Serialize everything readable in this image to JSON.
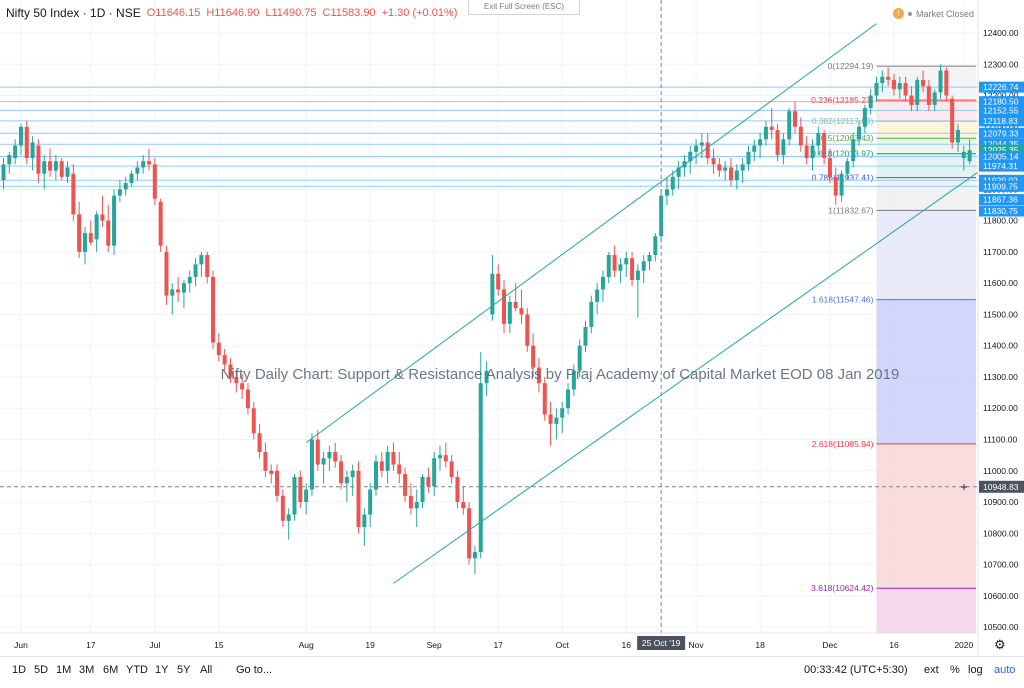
{
  "header": {
    "symbol": "Nifty 50 Index · 1D · NSE",
    "o": "O11646.15",
    "h": "H11646.90",
    "l": "L11490.75",
    "c": "C11583.90",
    "chg": "+1.30 (+0.01%)",
    "exit_fullscreen": "Exit Full Screen (ESC)",
    "market_status": "Market Closed",
    "market_icon": "!"
  },
  "watermark": "Nifty Daily Chart: Support & Resistance Analysis by Praj Academy of Capital Market EOD 08 Jan 2019",
  "bottom_bar": {
    "timeframes": [
      "1D",
      "5D",
      "1M",
      "3M",
      "6M",
      "YTD",
      "1Y",
      "5Y",
      "All"
    ],
    "goto": "Go to...",
    "clock": "00:33:42 (UTC+5:30)",
    "options": [
      "ext",
      "%",
      "log",
      "auto"
    ]
  },
  "chart_data": {
    "type": "candlestick",
    "ylim": [
      10460,
      12480
    ],
    "y_ticks": [
      12400,
      12300,
      12200,
      12100,
      12000,
      11900,
      11800,
      11700,
      11600,
      11500,
      11400,
      11300,
      11200,
      11100,
      11000,
      10900,
      10800,
      10700,
      10600,
      10500
    ],
    "y_tick_labels": [
      "12400.00",
      "12300.00",
      "12200.00",
      "12100.00",
      "12000.00",
      "11900.00",
      "11800.00",
      "11700.00",
      "11600.00",
      "11500.00",
      "11400.00",
      "11300.00",
      "11200.00",
      "11100.00",
      "11000.00",
      "10900.00",
      "10800.00",
      "10700.00",
      "10600.00",
      "10500.00"
    ],
    "x_ticks": [
      {
        "label": "Jun",
        "bar": 3
      },
      {
        "label": "17",
        "bar": 15
      },
      {
        "label": "Jul",
        "bar": 26
      },
      {
        "label": "15",
        "bar": 37
      },
      {
        "label": "Aug",
        "bar": 52
      },
      {
        "label": "19",
        "bar": 63
      },
      {
        "label": "Sep",
        "bar": 74
      },
      {
        "label": "17",
        "bar": 85
      },
      {
        "label": "Oct",
        "bar": 96
      },
      {
        "label": "16",
        "bar": 107
      },
      {
        "label": "Nov",
        "bar": 119
      },
      {
        "label": "18",
        "bar": 130
      },
      {
        "label": "Dec",
        "bar": 142
      },
      {
        "label": "16",
        "bar": 153
      },
      {
        "label": "2020",
        "bar": 165
      }
    ],
    "crosshair": {
      "bar": 113,
      "x_label": "25 Oct '19",
      "y_value": 10948.83,
      "y_label": "10948.83"
    },
    "price_tags": [
      {
        "value": 12226.74,
        "label": "12226.74",
        "color": "#2196f3"
      },
      {
        "value": 12180.5,
        "label": "12180.50",
        "color": "#2196f3"
      },
      {
        "value": 12152.55,
        "label": "12152.55",
        "color": "#2196f3"
      },
      {
        "value": 12118.83,
        "label": "12118.83",
        "color": "#2196f3"
      },
      {
        "value": 12079.33,
        "label": "12079.33",
        "color": "#2196f3"
      },
      {
        "value": 12044.35,
        "label": "12044.35",
        "color": "#2196f3"
      },
      {
        "value": 12025.35,
        "label": "12025.35",
        "color": "#26a69a"
      },
      {
        "value": 12005.14,
        "label": "12005.14",
        "color": "#2196f3"
      },
      {
        "value": 11974.31,
        "label": "11974.31",
        "color": "#2196f3"
      },
      {
        "value": 11929.02,
        "label": "11929.02",
        "color": "#2196f3"
      },
      {
        "value": 11909.75,
        "label": "11909.75",
        "color": "#2196f3"
      },
      {
        "value": 11867.36,
        "label": "11867.36",
        "color": "#2196f3"
      },
      {
        "value": 11830.75,
        "label": "11830.75",
        "color": "#2196f3"
      }
    ],
    "fib": {
      "start_bar": 150,
      "end_bar": 177,
      "levels": [
        {
          "ratio": "0",
          "value": 12294.19,
          "label": "0(12294.19)",
          "color": "#787b86",
          "fill": "#f2f3f5"
        },
        {
          "ratio": "0.236",
          "value": 12185.27,
          "label": "0.236(12185.27)",
          "color": "#f23645",
          "fill": "#fde7e7"
        },
        {
          "ratio": "0.382",
          "value": 12117.89,
          "label": "0.382(12117.89)",
          "color": "#81c784",
          "fill": "#fdf4d8"
        },
        {
          "ratio": "0.5",
          "value": 12063.43,
          "label": "0.5(12063.43)",
          "color": "#4caf50",
          "fill": "#e8f5e9"
        },
        {
          "ratio": "0.618",
          "value": 12013.97,
          "label": "0.618(12013.97)",
          "color": "#089981",
          "fill": "#e0f2f1"
        },
        {
          "ratio": "0.786",
          "value": 11937.41,
          "label": "0.786(11937.41)",
          "color": "#2962ff",
          "fill": "#f0f0f0"
        },
        {
          "ratio": "1",
          "value": 11832.67,
          "label": "1(11832.67)",
          "color": "#787b86",
          "fill": "#e6e8f7"
        },
        {
          "ratio": "1.618",
          "value": 11547.46,
          "label": "1.618(11547.46)",
          "color": "#5b6ee1",
          "fill": "#ccd3fa"
        },
        {
          "ratio": "2.618",
          "value": 11085.94,
          "label": "2.618(11085.94)",
          "color": "#f23645",
          "fill": "#f8d9d9"
        },
        {
          "ratio": "3.618",
          "value": 10624.42,
          "label": "3.618(10624.42)",
          "color": "#9c27b0",
          "fill": "#ead7f7"
        }
      ],
      "bottom_fill": "#f5d7ec"
    },
    "horizontal_lines": [
      12226.74,
      12180.5,
      12152.55,
      12118.83,
      12079.33,
      12044.35,
      12005.14,
      11974.31,
      11929.02,
      11909.75
    ],
    "channel": {
      "upper": [
        {
          "bar": 52,
          "value": 11090
        },
        {
          "bar": 150,
          "value": 12430
        }
      ],
      "lower": [
        {
          "bar": 67,
          "value": 10640
        },
        {
          "bar": 177,
          "value": 12080
        }
      ],
      "color": "#26a69a"
    },
    "candles": [
      [
        11930,
        12000,
        11900,
        11980
      ],
      [
        11980,
        12020,
        11950,
        12010
      ],
      [
        12000,
        12060,
        11980,
        12040
      ],
      [
        12040,
        12110,
        12010,
        12100
      ],
      [
        12100,
        12120,
        11980,
        12000
      ],
      [
        12000,
        12070,
        11960,
        12050
      ],
      [
        12040,
        12060,
        11920,
        11950
      ],
      [
        11950,
        12010,
        11900,
        11990
      ],
      [
        11990,
        12030,
        11940,
        11960
      ],
      [
        11960,
        12010,
        11930,
        11990
      ],
      [
        11990,
        12000,
        11930,
        11940
      ],
      [
        11940,
        11990,
        11920,
        11970
      ],
      [
        11950,
        11980,
        11800,
        11820
      ],
      [
        11820,
        11860,
        11680,
        11700
      ],
      [
        11700,
        11780,
        11660,
        11760
      ],
      [
        11760,
        11800,
        11720,
        11730
      ],
      [
        11740,
        11830,
        11700,
        11820
      ],
      [
        11820,
        11880,
        11780,
        11800
      ],
      [
        11800,
        11850,
        11700,
        11720
      ],
      [
        11720,
        11900,
        11690,
        11880
      ],
      [
        11880,
        11930,
        11860,
        11900
      ],
      [
        11900,
        11940,
        11880,
        11920
      ],
      [
        11920,
        11960,
        11910,
        11950
      ],
      [
        11950,
        11990,
        11930,
        11970
      ],
      [
        11970,
        12010,
        11950,
        11990
      ],
      [
        11990,
        12030,
        11960,
        11980
      ],
      [
        11980,
        12000,
        11850,
        11870
      ],
      [
        11860,
        11870,
        11700,
        11720
      ],
      [
        11700,
        11720,
        11530,
        11560
      ],
      [
        11560,
        11600,
        11500,
        11580
      ],
      [
        11580,
        11620,
        11540,
        11570
      ],
      [
        11570,
        11610,
        11520,
        11600
      ],
      [
        11600,
        11640,
        11570,
        11620
      ],
      [
        11620,
        11680,
        11590,
        11660
      ],
      [
        11660,
        11700,
        11620,
        11690
      ],
      [
        11690,
        11700,
        11600,
        11620
      ],
      [
        11620,
        11640,
        11390,
        11410
      ],
      [
        11410,
        11440,
        11350,
        11370
      ],
      [
        11370,
        11390,
        11320,
        11340
      ],
      [
        11340,
        11360,
        11280,
        11300
      ],
      [
        11300,
        11320,
        11250,
        11280
      ],
      [
        11280,
        11310,
        11230,
        11260
      ],
      [
        11260,
        11280,
        11180,
        11200
      ],
      [
        11200,
        11220,
        11100,
        11120
      ],
      [
        11120,
        11150,
        11040,
        11060
      ],
      [
        11060,
        11090,
        10980,
        11000
      ],
      [
        11000,
        11020,
        10960,
        10990
      ],
      [
        11000,
        11020,
        10900,
        10920
      ],
      [
        10920,
        10940,
        10820,
        10840
      ],
      [
        10840,
        10880,
        10780,
        10860
      ],
      [
        10860,
        10990,
        10840,
        10980
      ],
      [
        10980,
        11000,
        10880,
        10900
      ],
      [
        10900,
        10960,
        10860,
        10940
      ],
      [
        10940,
        11120,
        10920,
        11100
      ],
      [
        11100,
        11130,
        11000,
        11020
      ],
      [
        11020,
        11060,
        10960,
        11040
      ],
      [
        11040,
        11080,
        11000,
        11060
      ],
      [
        11060,
        11090,
        11010,
        11030
      ],
      [
        11030,
        11050,
        10940,
        10960
      ],
      [
        10960,
        11000,
        10900,
        10980
      ],
      [
        10980,
        11020,
        10920,
        11000
      ],
      [
        11000,
        11030,
        10800,
        10820
      ],
      [
        10820,
        10880,
        10760,
        10860
      ],
      [
        10860,
        10960,
        10820,
        10940
      ],
      [
        10940,
        11050,
        10920,
        11030
      ],
      [
        11030,
        11060,
        10980,
        11000
      ],
      [
        11000,
        11080,
        10960,
        11060
      ],
      [
        11060,
        11090,
        11000,
        11020
      ],
      [
        11020,
        11060,
        10960,
        10990
      ],
      [
        10990,
        11010,
        10900,
        10920
      ],
      [
        10920,
        10960,
        10860,
        10880
      ],
      [
        10880,
        10940,
        10820,
        10900
      ],
      [
        10900,
        10990,
        10880,
        10980
      ],
      [
        10980,
        11010,
        10930,
        10950
      ],
      [
        10950,
        11060,
        10920,
        11040
      ],
      [
        11040,
        11080,
        11000,
        11050
      ],
      [
        11050,
        11090,
        11010,
        11030
      ],
      [
        11030,
        11050,
        10960,
        10980
      ],
      [
        10980,
        11000,
        10880,
        10900
      ],
      [
        10900,
        10950,
        10860,
        10880
      ],
      [
        10880,
        10900,
        10700,
        10720
      ],
      [
        10720,
        10760,
        10670,
        10740
      ],
      [
        10740,
        11380,
        10720,
        11280
      ],
      [
        11280,
        11350,
        11240,
        11320
      ],
      [
        11500,
        11690,
        11480,
        11630
      ],
      [
        11630,
        11660,
        11560,
        11580
      ],
      [
        11580,
        11610,
        11440,
        11470
      ],
      [
        11470,
        11560,
        11440,
        11540
      ],
      [
        11540,
        11600,
        11510,
        11520
      ],
      [
        11520,
        11580,
        11470,
        11500
      ],
      [
        11500,
        11520,
        11380,
        11400
      ],
      [
        11400,
        11440,
        11300,
        11330
      ],
      [
        11330,
        11360,
        11250,
        11280
      ],
      [
        11280,
        11300,
        11160,
        11180
      ],
      [
        11180,
        11220,
        11080,
        11150
      ],
      [
        11150,
        11200,
        11100,
        11170
      ],
      [
        11170,
        11220,
        11120,
        11200
      ],
      [
        11200,
        11280,
        11180,
        11260
      ],
      [
        11260,
        11340,
        11240,
        11320
      ],
      [
        11320,
        11420,
        11300,
        11400
      ],
      [
        11400,
        11480,
        11380,
        11460
      ],
      [
        11460,
        11560,
        11440,
        11540
      ],
      [
        11540,
        11600,
        11500,
        11580
      ],
      [
        11580,
        11640,
        11540,
        11620
      ],
      [
        11620,
        11700,
        11600,
        11690
      ],
      [
        11690,
        11720,
        11620,
        11640
      ],
      [
        11640,
        11680,
        11600,
        11660
      ],
      [
        11660,
        11700,
        11620,
        11680
      ],
      [
        11680,
        11700,
        11590,
        11610
      ],
      [
        11610,
        11660,
        11490,
        11640
      ],
      [
        11640,
        11690,
        11600,
        11670
      ],
      [
        11670,
        11700,
        11640,
        11690
      ],
      [
        11690,
        11760,
        11670,
        11750
      ],
      [
        11750,
        11900,
        11730,
        11880
      ],
      [
        11880,
        11940,
        11850,
        11900
      ],
      [
        11900,
        11960,
        11880,
        11940
      ],
      [
        11940,
        11990,
        11900,
        11970
      ],
      [
        11970,
        12010,
        11940,
        11990
      ],
      [
        11990,
        12040,
        11950,
        12020
      ],
      [
        12020,
        12060,
        11980,
        12040
      ],
      [
        12040,
        12080,
        12000,
        12050
      ],
      [
        12050,
        12080,
        11980,
        12000
      ],
      [
        12000,
        12030,
        11950,
        11980
      ],
      [
        11980,
        12000,
        11940,
        11960
      ],
      [
        11960,
        11990,
        11930,
        11970
      ],
      [
        11970,
        12000,
        11910,
        11930
      ],
      [
        11930,
        11980,
        11900,
        11960
      ],
      [
        11960,
        12000,
        11920,
        11980
      ],
      [
        11980,
        12040,
        11960,
        12020
      ],
      [
        12020,
        12060,
        11990,
        12040
      ],
      [
        12040,
        12080,
        12000,
        12060
      ],
      [
        12060,
        12120,
        12040,
        12100
      ],
      [
        12100,
        12160,
        12060,
        12090
      ],
      [
        12090,
        12110,
        11990,
        12010
      ],
      [
        12010,
        12080,
        11980,
        12060
      ],
      [
        12060,
        12160,
        12040,
        12150
      ],
      [
        12150,
        12180,
        12080,
        12100
      ],
      [
        12100,
        12130,
        12020,
        12040
      ],
      [
        12040,
        12070,
        11980,
        12000
      ],
      [
        12000,
        12060,
        11960,
        12040
      ],
      [
        12040,
        12100,
        12010,
        12080
      ],
      [
        12080,
        12090,
        11980,
        12000
      ],
      [
        12000,
        12030,
        11920,
        11940
      ],
      [
        11940,
        11970,
        11850,
        11880
      ],
      [
        11880,
        11960,
        11860,
        11950
      ],
      [
        11950,
        12000,
        11930,
        11990
      ],
      [
        11990,
        12080,
        11970,
        12060
      ],
      [
        12060,
        12120,
        12040,
        12100
      ],
      [
        12100,
        12170,
        12080,
        12160
      ],
      [
        12160,
        12220,
        12140,
        12200
      ],
      [
        12200,
        12260,
        12180,
        12240
      ],
      [
        12240,
        12280,
        12210,
        12260
      ],
      [
        12260,
        12290,
        12230,
        12250
      ],
      [
        12250,
        12270,
        12200,
        12220
      ],
      [
        12220,
        12260,
        12190,
        12240
      ],
      [
        12240,
        12260,
        12180,
        12200
      ],
      [
        12200,
        12230,
        12150,
        12170
      ],
      [
        12170,
        12260,
        12150,
        12250
      ],
      [
        12250,
        12280,
        12210,
        12230
      ],
      [
        12230,
        12250,
        12150,
        12170
      ],
      [
        12170,
        12220,
        12150,
        12210
      ],
      [
        12210,
        12300,
        12190,
        12280
      ],
      [
        12280,
        12290,
        12180,
        12200
      ],
      [
        12190,
        12200,
        12030,
        12050
      ],
      [
        12050,
        12110,
        12020,
        12090
      ],
      [
        12000,
        12040,
        11960,
        12020
      ],
      [
        11990,
        12060,
        11980,
        12025
      ]
    ]
  }
}
